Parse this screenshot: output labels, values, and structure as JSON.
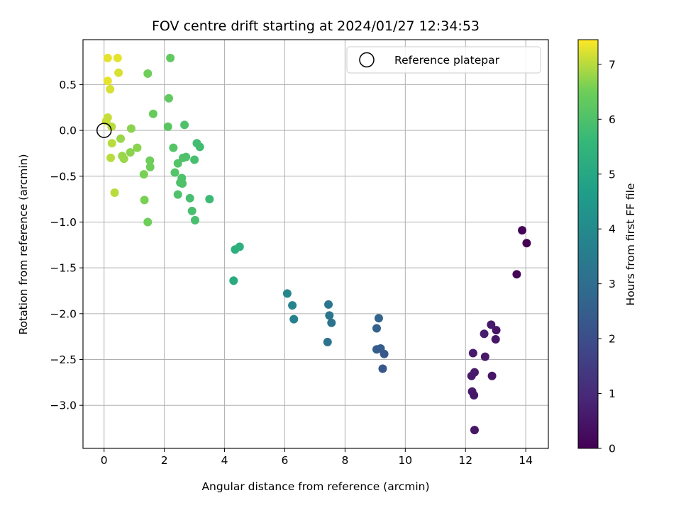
{
  "chart_data": {
    "type": "scatter",
    "title": "FOV centre drift starting at 2024/01/27 12:34:53",
    "xlabel": "Angular distance from reference (arcmin)",
    "ylabel": "Rotation from reference (arcmin)",
    "xlim": [
      -0.7,
      14.75
    ],
    "ylim": [
      -3.47,
      0.99
    ],
    "xticks": [
      0,
      2,
      4,
      6,
      8,
      10,
      12,
      14
    ],
    "xtick_labels": [
      "0",
      "2",
      "4",
      "6",
      "8",
      "10",
      "12",
      "14"
    ],
    "yticks": [
      0.5,
      0.0,
      -0.5,
      -1.0,
      -1.5,
      -2.0,
      -2.5,
      -3.0
    ],
    "ytick_labels": [
      "0.5",
      "0.0",
      "−0.5",
      "−1.0",
      "−1.5",
      "−2.0",
      "−2.5",
      "−3.0"
    ],
    "grid": true,
    "legend": {
      "placement": "top-right",
      "entries": [
        "Reference platepar"
      ]
    },
    "reference_point": {
      "x": 0.0,
      "y": 0.0,
      "marker": "open-circle"
    },
    "colorbar": {
      "label": "Hours from first FF file",
      "colormap": "viridis",
      "range": [
        0,
        7.45
      ],
      "ticks": [
        0,
        1,
        2,
        3,
        4,
        5,
        6,
        7
      ],
      "tick_labels": [
        "0",
        "1",
        "2",
        "3",
        "4",
        "5",
        "6",
        "7"
      ]
    },
    "series": [
      {
        "points": [
          {
            "x": 0.12,
            "y": 0.79,
            "c": 7.3
          },
          {
            "x": 0.45,
            "y": 0.79,
            "c": 7.3
          },
          {
            "x": 0.48,
            "y": 0.63,
            "c": 7.2
          },
          {
            "x": 0.12,
            "y": 0.54,
            "c": 7.3
          },
          {
            "x": 0.2,
            "y": 0.45,
            "c": 7.2
          },
          {
            "x": 0.12,
            "y": 0.14,
            "c": 7.1
          },
          {
            "x": 0.07,
            "y": 0.1,
            "c": 7.1
          },
          {
            "x": 0.25,
            "y": 0.04,
            "c": 7.0
          },
          {
            "x": 0.26,
            "y": -0.14,
            "c": 7.0
          },
          {
            "x": 0.22,
            "y": -0.3,
            "c": 7.0
          },
          {
            "x": 0.35,
            "y": -0.68,
            "c": 7.0
          },
          {
            "x": 0.55,
            "y": -0.09,
            "c": 6.8
          },
          {
            "x": 0.6,
            "y": -0.28,
            "c": 6.8
          },
          {
            "x": 0.66,
            "y": -0.31,
            "c": 6.8
          },
          {
            "x": 0.9,
            "y": 0.02,
            "c": 6.7
          },
          {
            "x": 0.87,
            "y": -0.24,
            "c": 6.7
          },
          {
            "x": 1.1,
            "y": -0.19,
            "c": 6.7
          },
          {
            "x": 1.32,
            "y": -0.48,
            "c": 6.6
          },
          {
            "x": 1.34,
            "y": -0.76,
            "c": 6.6
          },
          {
            "x": 1.45,
            "y": -1.0,
            "c": 6.5
          },
          {
            "x": 1.45,
            "y": 0.62,
            "c": 6.5
          },
          {
            "x": 1.52,
            "y": -0.33,
            "c": 6.5
          },
          {
            "x": 1.53,
            "y": -0.4,
            "c": 6.5
          },
          {
            "x": 1.63,
            "y": 0.18,
            "c": 6.4
          },
          {
            "x": 2.2,
            "y": 0.79,
            "c": 6.3
          },
          {
            "x": 2.15,
            "y": 0.35,
            "c": 6.3
          },
          {
            "x": 2.12,
            "y": 0.04,
            "c": 6.2
          },
          {
            "x": 2.3,
            "y": -0.19,
            "c": 6.1
          },
          {
            "x": 2.35,
            "y": -0.46,
            "c": 6.1
          },
          {
            "x": 2.45,
            "y": -0.36,
            "c": 6.1
          },
          {
            "x": 2.45,
            "y": -0.7,
            "c": 6.0
          },
          {
            "x": 2.53,
            "y": -0.57,
            "c": 6.0
          },
          {
            "x": 2.58,
            "y": -0.52,
            "c": 6.0
          },
          {
            "x": 2.6,
            "y": -0.58,
            "c": 6.0
          },
          {
            "x": 2.62,
            "y": -0.3,
            "c": 6.0
          },
          {
            "x": 2.67,
            "y": 0.06,
            "c": 6.0
          },
          {
            "x": 2.72,
            "y": -0.29,
            "c": 6.0
          },
          {
            "x": 2.85,
            "y": -0.74,
            "c": 5.9
          },
          {
            "x": 2.92,
            "y": -0.88,
            "c": 5.9
          },
          {
            "x": 3.0,
            "y": -0.32,
            "c": 5.9
          },
          {
            "x": 3.02,
            "y": -0.98,
            "c": 5.9
          },
          {
            "x": 3.08,
            "y": -0.14,
            "c": 5.8
          },
          {
            "x": 3.18,
            "y": -0.18,
            "c": 5.8
          },
          {
            "x": 3.5,
            "y": -0.75,
            "c": 5.7
          },
          {
            "x": 4.35,
            "y": -1.3,
            "c": 5.3
          },
          {
            "x": 4.5,
            "y": -1.27,
            "c": 5.3
          },
          {
            "x": 4.3,
            "y": -1.64,
            "c": 5.1
          },
          {
            "x": 6.08,
            "y": -1.78,
            "c": 3.9
          },
          {
            "x": 6.25,
            "y": -1.91,
            "c": 3.8
          },
          {
            "x": 6.3,
            "y": -2.06,
            "c": 3.7
          },
          {
            "x": 7.45,
            "y": -1.9,
            "c": 3.3
          },
          {
            "x": 7.48,
            "y": -2.02,
            "c": 3.3
          },
          {
            "x": 7.55,
            "y": -2.1,
            "c": 3.2
          },
          {
            "x": 7.42,
            "y": -2.31,
            "c": 3.2
          },
          {
            "x": 9.12,
            "y": -2.05,
            "c": 2.7
          },
          {
            "x": 9.05,
            "y": -2.16,
            "c": 2.6
          },
          {
            "x": 9.05,
            "y": -2.39,
            "c": 2.5
          },
          {
            "x": 9.18,
            "y": -2.38,
            "c": 2.4
          },
          {
            "x": 9.3,
            "y": -2.44,
            "c": 2.3
          },
          {
            "x": 9.25,
            "y": -2.6,
            "c": 2.3
          },
          {
            "x": 12.25,
            "y": -2.43,
            "c": 0.6
          },
          {
            "x": 12.2,
            "y": -2.68,
            "c": 0.6
          },
          {
            "x": 12.3,
            "y": -2.64,
            "c": 0.6
          },
          {
            "x": 12.22,
            "y": -2.85,
            "c": 0.6
          },
          {
            "x": 12.28,
            "y": -2.89,
            "c": 0.5
          },
          {
            "x": 12.3,
            "y": -3.27,
            "c": 0.5
          },
          {
            "x": 12.62,
            "y": -2.22,
            "c": 0.7
          },
          {
            "x": 12.65,
            "y": -2.47,
            "c": 0.6
          },
          {
            "x": 12.85,
            "y": -2.12,
            "c": 0.6
          },
          {
            "x": 12.88,
            "y": -2.68,
            "c": 0.5
          },
          {
            "x": 13.02,
            "y": -2.18,
            "c": 0.5
          },
          {
            "x": 13.0,
            "y": -2.28,
            "c": 0.5
          },
          {
            "x": 13.7,
            "y": -1.57,
            "c": 0.1
          },
          {
            "x": 13.88,
            "y": -1.09,
            "c": 0.1
          },
          {
            "x": 14.03,
            "y": -1.23,
            "c": 0.0
          }
        ]
      }
    ]
  }
}
